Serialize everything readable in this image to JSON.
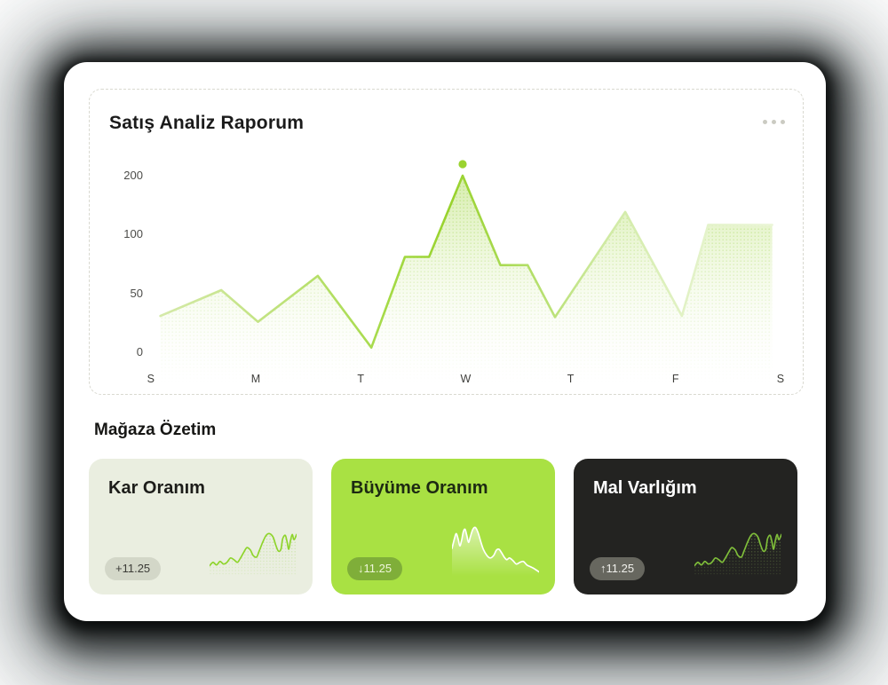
{
  "report_card": {
    "title": "Satış Analiz Raporum",
    "menu_icon": "ellipsis-icon"
  },
  "chart_data": {
    "type": "area",
    "title": "Satış Analiz Raporum",
    "x_tick_labels": [
      "S",
      "M",
      "T",
      "W",
      "T",
      "F",
      "S"
    ],
    "y_tick_labels": [
      "200",
      "100",
      "50",
      "0"
    ],
    "y_tick_values": [
      200,
      100,
      50,
      0
    ],
    "axis_note": "y ticks 0/50/100/200 are evenly spaced (piecewise non-linear scale); x is days of week",
    "series": [
      {
        "name": "Satış",
        "points": [
          {
            "day": 0.09,
            "value": 31
          },
          {
            "day": 0.67,
            "value": 53
          },
          {
            "day": 1.02,
            "value": 26
          },
          {
            "day": 1.59,
            "value": 65
          },
          {
            "day": 2.1,
            "value": 4
          },
          {
            "day": 2.42,
            "value": 81
          },
          {
            "day": 2.65,
            "value": 81
          },
          {
            "day": 2.97,
            "value": 200
          },
          {
            "day": 3.33,
            "value": 74
          },
          {
            "day": 3.59,
            "value": 74
          },
          {
            "day": 3.85,
            "value": 30
          },
          {
            "day": 4.52,
            "value": 138
          },
          {
            "day": 5.06,
            "value": 31
          },
          {
            "day": 5.31,
            "value": 116
          },
          {
            "day": 5.92,
            "value": 116
          }
        ]
      }
    ],
    "highlight_point_index": 7,
    "legend": "none",
    "grid": "off",
    "colors": {
      "line_bright": "#98d22c",
      "line_pale": "#ecf6da",
      "highlight_dot": "#9ad32f"
    }
  },
  "summary": {
    "heading": "Mağaza Özetim",
    "cards": [
      {
        "title": "Kar Oranım",
        "badge": "+11.25",
        "trend": "rising",
        "bg": "#eaeee0",
        "title_color": "#1d1d1a",
        "badge_bg": "#d3d7c8",
        "badge_color": "#3c3c37",
        "spark_shape": "rising",
        "spark_color": "#8ed42b",
        "spark_fill": "dots",
        "spark_dot_color": "#a9d86a"
      },
      {
        "title": "Büyüme Oranım",
        "badge": "↓11.25",
        "trend": "falling",
        "bg": "#a9e143",
        "title_color": "#1d2a12",
        "badge_bg": "#7fae39",
        "badge_color": "#eef6da",
        "spark_shape": "falling",
        "spark_color": "#ffffff",
        "spark_fill": "white",
        "spark_dot_color": "#ffffff"
      },
      {
        "title": "Mal Varlığım",
        "badge": "↑11.25",
        "trend": "rising",
        "bg": "#232321",
        "title_color": "#ffffff",
        "badge_bg": "#67675f",
        "badge_color": "#f0f0ec",
        "spark_shape": "rising",
        "spark_color": "#7fbe3a",
        "spark_fill": "dots",
        "spark_dot_color": "#84a556"
      }
    ]
  },
  "sparklines": {
    "rising": [
      [
        0,
        46
      ],
      [
        4,
        42
      ],
      [
        8,
        45
      ],
      [
        12,
        41
      ],
      [
        16,
        44
      ],
      [
        20,
        42
      ],
      [
        24,
        37
      ],
      [
        28,
        39
      ],
      [
        32,
        42
      ],
      [
        35,
        38
      ],
      [
        39,
        31
      ],
      [
        43,
        25
      ],
      [
        47,
        28
      ],
      [
        50,
        34
      ],
      [
        54,
        36
      ],
      [
        57,
        29
      ],
      [
        61,
        19
      ],
      [
        65,
        11
      ],
      [
        69,
        9
      ],
      [
        73,
        13
      ],
      [
        76,
        22
      ],
      [
        79,
        29
      ],
      [
        82,
        27
      ],
      [
        84,
        15
      ],
      [
        87,
        11
      ],
      [
        89,
        18
      ],
      [
        91,
        27
      ],
      [
        93,
        17
      ],
      [
        95,
        10
      ],
      [
        97,
        16
      ],
      [
        100,
        10
      ]
    ],
    "falling": [
      [
        0,
        26
      ],
      [
        3,
        14
      ],
      [
        5,
        9
      ],
      [
        7,
        15
      ],
      [
        9,
        23
      ],
      [
        11,
        17
      ],
      [
        13,
        7
      ],
      [
        15,
        4
      ],
      [
        17,
        11
      ],
      [
        19,
        19
      ],
      [
        21,
        13
      ],
      [
        24,
        4
      ],
      [
        27,
        2
      ],
      [
        30,
        8
      ],
      [
        33,
        18
      ],
      [
        36,
        27
      ],
      [
        40,
        34
      ],
      [
        44,
        37
      ],
      [
        48,
        34
      ],
      [
        51,
        28
      ],
      [
        54,
        27
      ],
      [
        57,
        31
      ],
      [
        60,
        36
      ],
      [
        63,
        39
      ],
      [
        66,
        37
      ],
      [
        70,
        40
      ],
      [
        74,
        44
      ],
      [
        78,
        42
      ],
      [
        82,
        41
      ],
      [
        86,
        45
      ],
      [
        90,
        47
      ],
      [
        94,
        49
      ],
      [
        100,
        53
      ]
    ]
  }
}
